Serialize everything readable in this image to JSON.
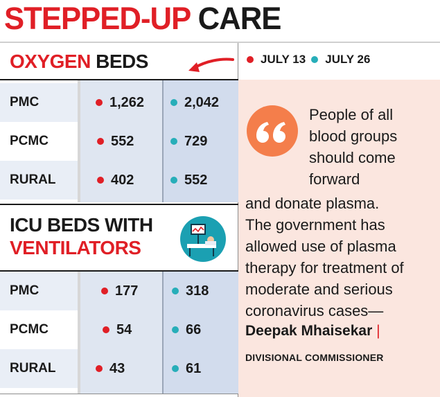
{
  "title": {
    "part1": "STEPPED-UP",
    "part2": "CARE"
  },
  "legend": {
    "items": [
      {
        "label": "JULY 13",
        "color": "#e01f26"
      },
      {
        "label": "JULY 26",
        "color": "#27aeb9"
      }
    ]
  },
  "oxygen": {
    "heading_red": "OXYGEN",
    "heading_dark": "BEDS",
    "rows": [
      {
        "label": "PMC",
        "july13": "1,262",
        "july26": "2,042"
      },
      {
        "label": "PCMC",
        "july13": "552",
        "july26": "729"
      },
      {
        "label": "RURAL",
        "july13": "402",
        "july26": "552"
      }
    ]
  },
  "icu": {
    "heading_line1": "ICU BEDS WITH",
    "heading_line2": "VENTILATORS",
    "icon": "ventilator-icon",
    "rows": [
      {
        "label": "PMC",
        "july13": "177",
        "july26": "318"
      },
      {
        "label": "PCMC",
        "july13": "54",
        "july26": "66"
      },
      {
        "label": "RURAL",
        "july13": "43",
        "july26": "61"
      }
    ]
  },
  "quote": {
    "icon": "quote-marks-icon",
    "lines": [
      "People of all",
      "blood groups",
      "should come",
      "forward",
      "and donate plasma.",
      "The government has",
      "allowed use of plasma",
      "therapy for treatment of",
      "moderate and serious",
      "coronavirus cases—"
    ],
    "name": "Deepak Mhaisekar",
    "name_separator": "|",
    "role": "DIVISIONAL COMMISSIONER"
  },
  "colors": {
    "accent_red": "#e01f26",
    "accent_teal": "#27aeb9",
    "quote_bg": "#fbe6df",
    "quote_icon": "#f47e4b"
  }
}
